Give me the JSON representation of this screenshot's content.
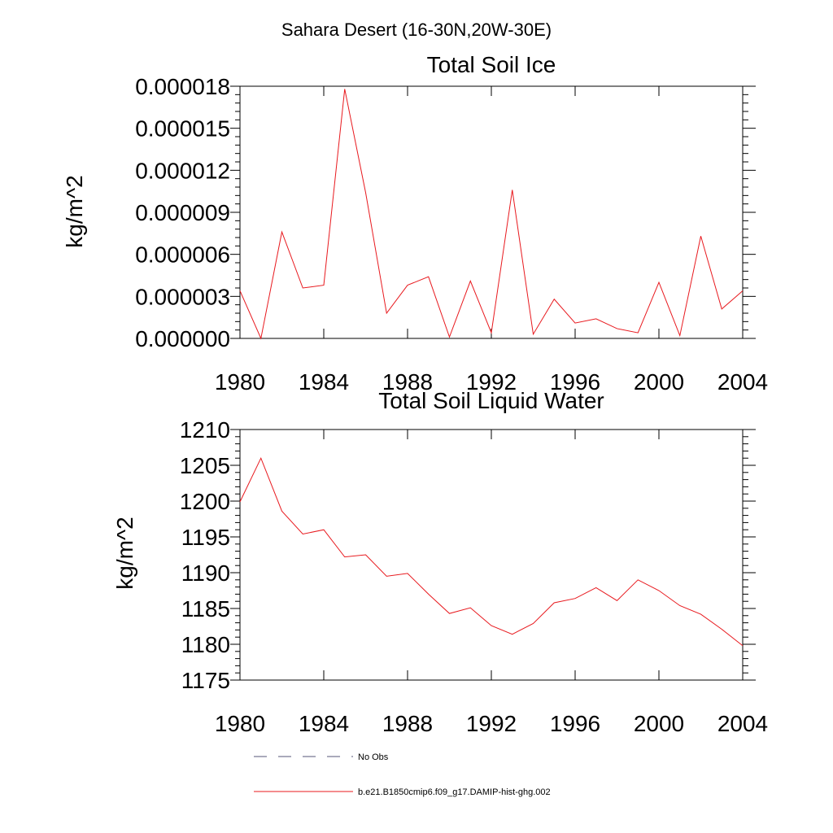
{
  "figure": {
    "title": "Sahara Desert (16-30N,20W-30E)",
    "line_color": "#e8191e"
  },
  "chart_data": [
    {
      "type": "line",
      "title": "Total Soil Ice",
      "xlabel": "",
      "ylabel": "kg/m^2",
      "xlim": [
        1980,
        2004
      ],
      "ylim": [
        0,
        1.8e-05
      ],
      "x_ticks": [
        1980,
        1984,
        1988,
        1992,
        1996,
        2000,
        2004
      ],
      "x_tick_labels": [
        "1980",
        "1984",
        "1988",
        "1992",
        "1996",
        "2000",
        "2004"
      ],
      "y_ticks": [
        0,
        3e-06,
        6e-06,
        9e-06,
        1.2e-05,
        1.5e-05,
        1.8e-05
      ],
      "y_tick_labels": [
        "0.000000",
        "0.000003",
        "0.000006",
        "0.000009",
        "0.000012",
        "0.000015",
        "0.000018"
      ],
      "grid": false,
      "x": [
        1980,
        1981,
        1982,
        1983,
        1984,
        1985,
        1986,
        1987,
        1988,
        1989,
        1990,
        1991,
        1992,
        1993,
        1994,
        1995,
        1996,
        1997,
        1998,
        1999,
        2000,
        2001,
        2002,
        2003,
        2004
      ],
      "series": [
        {
          "name": "b.e21.B1850cmip6.f09_g17.DAMIP-hist-ghg.002",
          "color": "#e8191e",
          "values": [
            3.4e-06,
            0.0,
            7.6e-06,
            3.6e-06,
            3.8e-06,
            1.78e-05,
            1.04e-05,
            1.8e-06,
            3.8e-06,
            4.4e-06,
            1e-07,
            4.1e-06,
            4e-07,
            1.06e-05,
            3e-07,
            2.8e-06,
            1.1e-06,
            1.4e-06,
            7e-07,
            4e-07,
            4e-06,
            2e-07,
            7.3e-06,
            2.1e-06,
            3.4e-06
          ]
        }
      ]
    },
    {
      "type": "line",
      "title": "Total Soil Liquid Water",
      "xlabel": "",
      "ylabel": "kg/m^2",
      "xlim": [
        1980,
        2004
      ],
      "ylim": [
        1175,
        1210
      ],
      "x_ticks": [
        1980,
        1984,
        1988,
        1992,
        1996,
        2000,
        2004
      ],
      "x_tick_labels": [
        "1980",
        "1984",
        "1988",
        "1992",
        "1996",
        "2000",
        "2004"
      ],
      "y_ticks": [
        1175,
        1180,
        1185,
        1190,
        1195,
        1200,
        1205,
        1210
      ],
      "y_tick_labels": [
        "1175",
        "1180",
        "1185",
        "1190",
        "1195",
        "1200",
        "1205",
        "1210"
      ],
      "grid": false,
      "x": [
        1980,
        1981,
        1982,
        1983,
        1984,
        1985,
        1986,
        1987,
        1988,
        1989,
        1990,
        1991,
        1992,
        1993,
        1994,
        1995,
        1996,
        1997,
        1998,
        1999,
        2000,
        2001,
        2002,
        2003,
        2004
      ],
      "series": [
        {
          "name": "b.e21.B1850cmip6.f09_g17.DAMIP-hist-ghg.002",
          "color": "#e8191e",
          "values": [
            1199.9,
            1206.0,
            1198.6,
            1195.4,
            1196.0,
            1192.2,
            1192.5,
            1189.5,
            1189.9,
            1187.0,
            1184.3,
            1185.1,
            1182.6,
            1181.4,
            1182.9,
            1185.8,
            1186.4,
            1187.9,
            1186.1,
            1189.0,
            1187.5,
            1185.4,
            1184.2,
            1182.1,
            1179.8
          ]
        }
      ]
    }
  ],
  "legend": {
    "entries": [
      {
        "label": "No Obs",
        "style": "dashed",
        "color": "#555577"
      },
      {
        "label": "b.e21.B1850cmip6.f09_g17.DAMIP-hist-ghg.002",
        "style": "solid",
        "color": "#e8191e"
      }
    ]
  }
}
